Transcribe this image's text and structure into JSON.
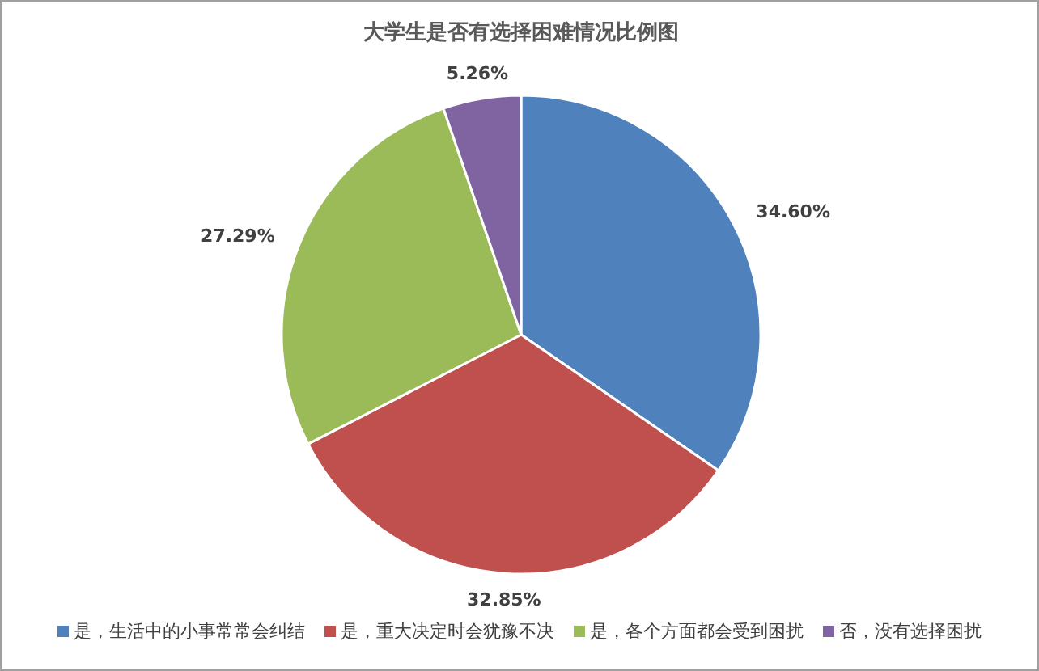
{
  "chart_data": {
    "type": "pie",
    "title": "大学生是否有选择困难情况比例图",
    "categories": [
      "是，生活中的小事常常会纠结",
      "是，重大决定时会犹豫不决",
      "是，各个方面都会受到困扰",
      "否，没有选择困扰"
    ],
    "values": [
      34.6,
      32.85,
      27.29,
      5.26
    ],
    "value_labels": [
      "34.60%",
      "32.85%",
      "27.29%",
      "5.26%"
    ],
    "colors": [
      "#4f81bd",
      "#c0504d",
      "#9bbb59",
      "#8064a2"
    ],
    "legend": "bottom"
  }
}
